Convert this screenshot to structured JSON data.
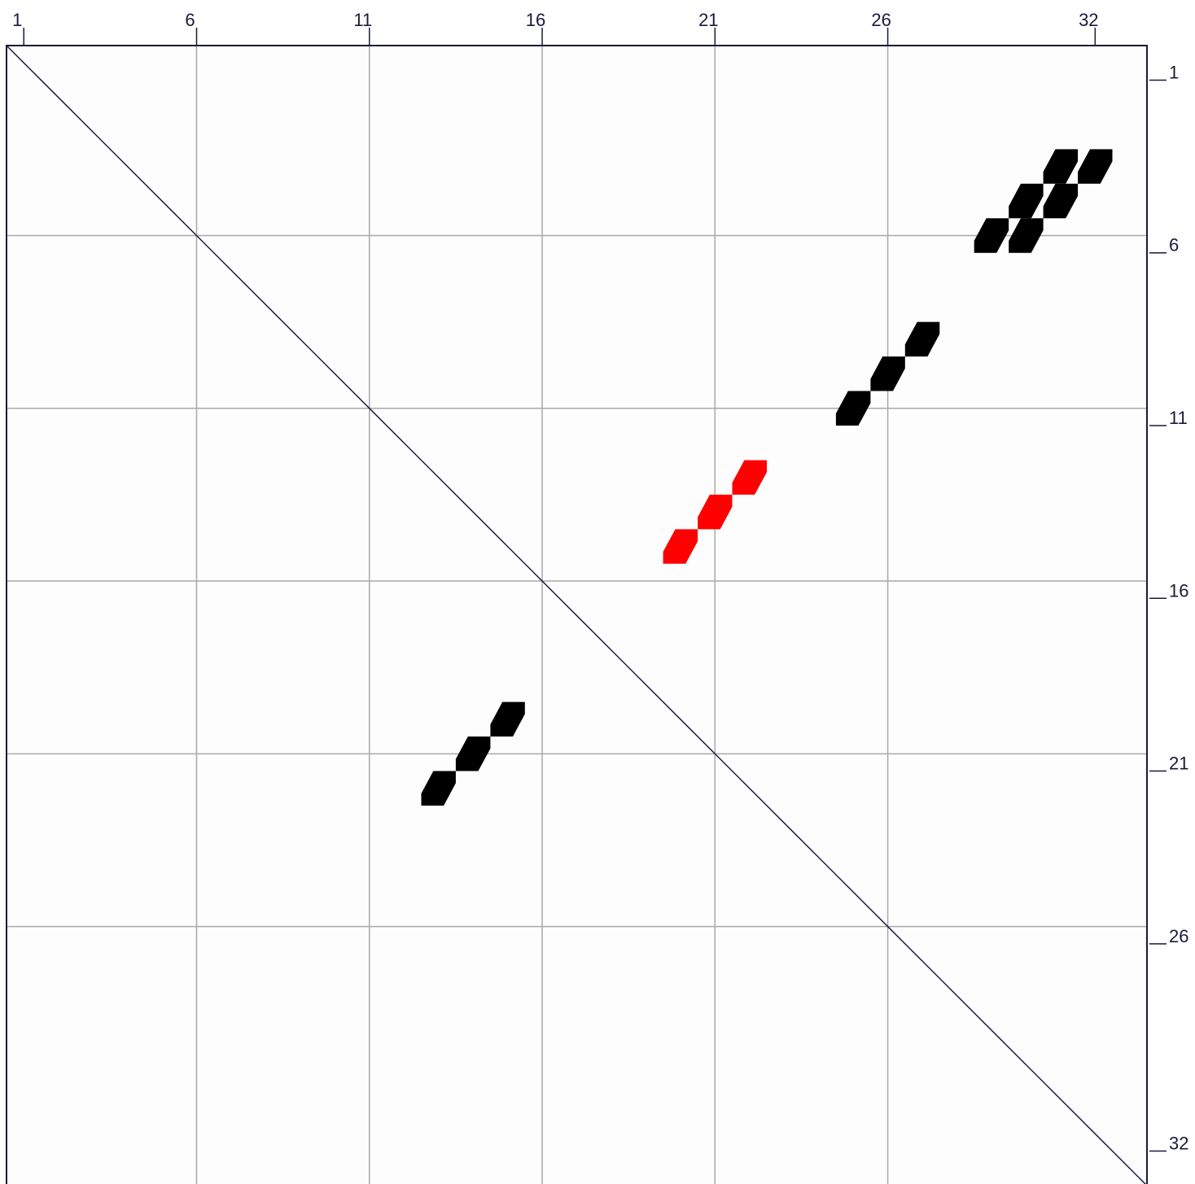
{
  "colors": {
    "background": "#fdfdfd",
    "frame": "#1a1a3a",
    "grid": "#a8a8a8",
    "tick": "#1a1a3a",
    "diagonal": "#1a1a3a",
    "pair_default": "#000000",
    "pair_highlight": "#ff0000"
  },
  "top_axis": {
    "tick_labels": [
      "1",
      "6",
      "11",
      "16",
      "21",
      "26",
      "32"
    ],
    "tick_positions": [
      1,
      6,
      11,
      16,
      21,
      26,
      32
    ]
  },
  "right_axis": {
    "tick_labels": [
      "1",
      "6",
      "11",
      "16",
      "21",
      "26",
      "32"
    ],
    "tick_positions": [
      1,
      6,
      11,
      16,
      21,
      26,
      32
    ]
  },
  "grid_positions": [
    6,
    11,
    16,
    21,
    26
  ],
  "sequence_length": 33,
  "diagonal": true,
  "pairs": [
    {
      "i": 4,
      "j": 31,
      "color": "pair_default"
    },
    {
      "i": 4,
      "j": 32,
      "color": "pair_default"
    },
    {
      "i": 5,
      "j": 30,
      "color": "pair_default"
    },
    {
      "i": 5,
      "j": 31,
      "color": "pair_default"
    },
    {
      "i": 6,
      "j": 29,
      "color": "pair_default"
    },
    {
      "i": 6,
      "j": 30,
      "color": "pair_default"
    },
    {
      "i": 9,
      "j": 27,
      "color": "pair_default"
    },
    {
      "i": 10,
      "j": 26,
      "color": "pair_default"
    },
    {
      "i": 11,
      "j": 25,
      "color": "pair_default"
    },
    {
      "i": 13,
      "j": 22,
      "color": "pair_highlight"
    },
    {
      "i": 14,
      "j": 21,
      "color": "pair_highlight"
    },
    {
      "i": 15,
      "j": 20,
      "color": "pair_highlight"
    },
    {
      "i": 20,
      "j": 15,
      "color": "pair_default"
    },
    {
      "i": 21,
      "j": 14,
      "color": "pair_default"
    },
    {
      "i": 22,
      "j": 13,
      "color": "pair_default"
    }
  ]
}
